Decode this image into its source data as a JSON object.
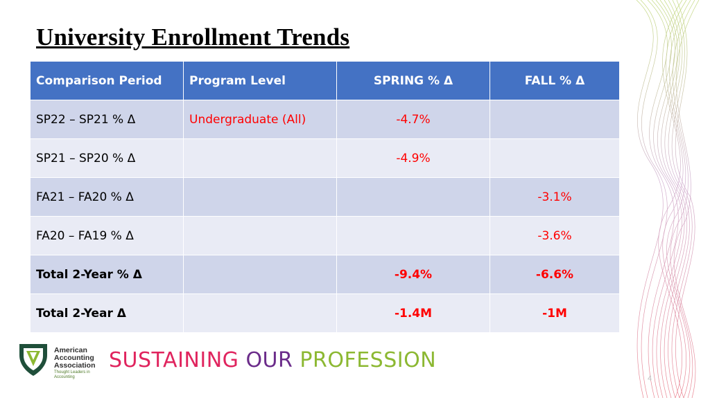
{
  "slide": {
    "title": "University Enrollment Trends",
    "page_number": "4"
  },
  "table": {
    "headers": [
      "Comparison Period",
      "Program Level",
      "SPRING % Δ",
      "FALL % Δ"
    ],
    "rows": [
      [
        "SP22 – SP21 % Δ",
        "Undergraduate (All)",
        "-4.7%",
        ""
      ],
      [
        "SP21 – SP20 % Δ",
        "",
        "-4.9%",
        ""
      ],
      [
        "FA21 – FA20 % Δ",
        "",
        "",
        "-3.1%"
      ],
      [
        "FA20 – FA19 % Δ",
        "",
        "",
        "-3.6%"
      ],
      [
        "Total 2-Year % Δ",
        "",
        "-9.4%",
        "-6.6%"
      ],
      [
        "Total 2-Year Δ",
        "",
        "-1.4M",
        "-1M"
      ]
    ]
  },
  "footer": {
    "logo": {
      "icon": "aaa-shield-logo-icon",
      "name_lines": [
        "American",
        "Accounting",
        "Association"
      ],
      "tagline_lines": [
        "Thought Leaders in",
        "Accounting"
      ]
    },
    "tagline": {
      "word1": "SUSTAINING",
      "word2": "OUR",
      "word3": "PROFESSION"
    }
  },
  "colors": {
    "header_bg": "#4472c4",
    "row_band_dark": "#cfd5ea",
    "row_band_light": "#e9ebf5",
    "negative_value": "#ff0000",
    "tagline_pink": "#e0245e",
    "tagline_purple": "#6b2c8a",
    "tagline_green": "#8cb832"
  }
}
